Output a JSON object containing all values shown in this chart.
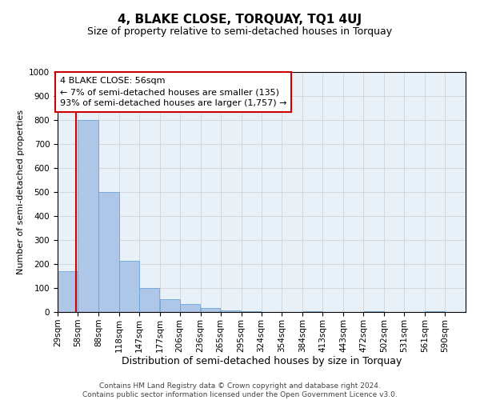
{
  "title": "4, BLAKE CLOSE, TORQUAY, TQ1 4UJ",
  "subtitle": "Size of property relative to semi-detached houses in Torquay",
  "xlabel": "Distribution of semi-detached houses by size in Torquay",
  "ylabel": "Number of semi-detached properties",
  "footer_line1": "Contains HM Land Registry data © Crown copyright and database right 2024.",
  "footer_line2": "Contains public sector information licensed under the Open Government Licence v3.0.",
  "annotation_title": "4 BLAKE CLOSE: 56sqm",
  "annotation_line1": "← 7% of semi-detached houses are smaller (135)",
  "annotation_line2": "93% of semi-detached houses are larger (1,757) →",
  "subject_size": 56,
  "bar_edges": [
    29,
    58,
    88,
    118,
    147,
    177,
    206,
    236,
    265,
    295,
    324,
    354,
    384,
    413,
    443,
    472,
    502,
    531,
    561,
    590,
    620
  ],
  "bar_values": [
    170,
    800,
    500,
    215,
    100,
    55,
    33,
    18,
    8,
    5,
    0,
    0,
    5,
    0,
    0,
    5,
    0,
    0,
    5,
    0
  ],
  "bar_color": "#aec6e8",
  "bar_edge_color": "#5a9fd4",
  "vline_color": "#cc0000",
  "vline_position": 56,
  "ylim": [
    0,
    1000
  ],
  "yticks": [
    0,
    100,
    200,
    300,
    400,
    500,
    600,
    700,
    800,
    900,
    1000
  ],
  "grid_color": "#cccccc",
  "bg_color": "#e8f0f8",
  "annotation_box_color": "#ffffff",
  "annotation_box_edge": "#cc0000",
  "title_fontsize": 11,
  "subtitle_fontsize": 9,
  "xlabel_fontsize": 9,
  "ylabel_fontsize": 8,
  "tick_fontsize": 7.5,
  "annotation_fontsize": 8,
  "footer_fontsize": 6.5
}
